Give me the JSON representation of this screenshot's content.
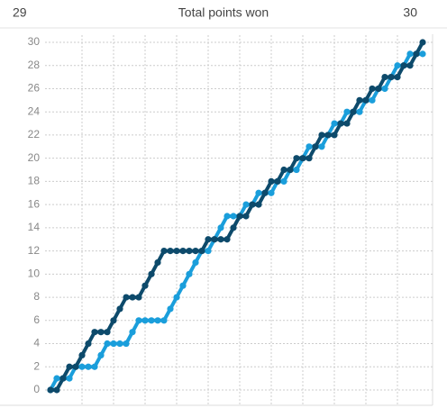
{
  "header": {
    "left": 29,
    "title": "Total points won",
    "right": 30
  },
  "chart_data": {
    "type": "line",
    "ylim": [
      0,
      30
    ],
    "yticks": [
      0,
      2,
      4,
      6,
      8,
      10,
      12,
      14,
      16,
      18,
      20,
      22,
      24,
      26,
      28,
      30
    ],
    "grid": true,
    "series": [
      {
        "color": "#1a9edb",
        "values": [
          0,
          1,
          1,
          1,
          2,
          2,
          2,
          2,
          3,
          4,
          4,
          4,
          4,
          5,
          6,
          6,
          6,
          6,
          6,
          7,
          8,
          9,
          10,
          11,
          12,
          12,
          13,
          14,
          15,
          15,
          15,
          16,
          16,
          17,
          17,
          17,
          18,
          18,
          19,
          19,
          20,
          21,
          21,
          21,
          22,
          23,
          23,
          24,
          24,
          24,
          25,
          25,
          26,
          26,
          27,
          28,
          28,
          29,
          29,
          29
        ]
      },
      {
        "color": "#0d4a6b",
        "values": [
          0,
          0,
          1,
          2,
          2,
          3,
          4,
          5,
          5,
          5,
          6,
          7,
          8,
          8,
          8,
          9,
          10,
          11,
          12,
          12,
          12,
          12,
          12,
          12,
          12,
          13,
          13,
          13,
          13,
          14,
          15,
          15,
          16,
          16,
          17,
          18,
          18,
          19,
          19,
          20,
          20,
          20,
          21,
          22,
          22,
          22,
          23,
          23,
          24,
          25,
          25,
          26,
          26,
          27,
          27,
          27,
          28,
          28,
          29,
          30
        ]
      }
    ]
  }
}
